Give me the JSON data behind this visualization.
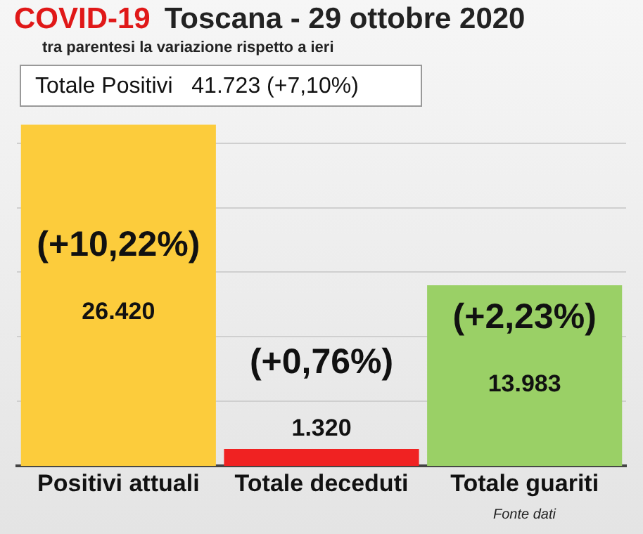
{
  "chart_data": {
    "type": "bar",
    "title": "COVID-19  Toscana - 29 ottobre 2020",
    "subtitle": "tra parentesi la variazione rispetto a ieri",
    "categories": [
      "Positivi attuali",
      "Totale deceduti",
      "Totale guariti"
    ],
    "values": [
      26420,
      1320,
      13983
    ],
    "colors": [
      "#fccc3c",
      "#f02222",
      "#9ad066"
    ],
    "value_labels": [
      "26.420",
      "1.320",
      "13.983"
    ],
    "ylim": [
      0,
      26500
    ],
    "yticks": [
      {
        "value": 5000,
        "label": null
      },
      {
        "value": 10000,
        "label": null
      },
      {
        "value": 15000,
        "label": null
      },
      {
        "value": 20000,
        "label": null
      },
      {
        "value": 25000,
        "label": null
      }
    ],
    "grid": "y",
    "tick_labels": "x",
    "legend": false,
    "annotations": [
      "(+10,22%)",
      "(+0,76%)",
      "(+2,23%)",
      "Totale Positivi   41.723 (+7,10%)",
      "Fonte dati"
    ]
  }
}
